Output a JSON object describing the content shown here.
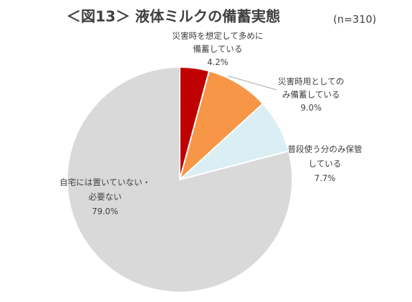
{
  "title": "＜図13＞ 液体ミルクの備蓄実態",
  "sample_size": "(n=310)",
  "chart_data": {
    "type": "pie",
    "title": "＜図13＞ 液体ミルクの備蓄実態",
    "slices": [
      {
        "label_lines": [
          "災害時を想定して多めに",
          "備蓄している"
        ],
        "value_label": "4.2%",
        "value": 4.2,
        "color": "#c00000"
      },
      {
        "label_lines": [
          "災害時用としての",
          "み備蓄している"
        ],
        "value_label": "9.0%",
        "value": 9.0,
        "color": "#f79646"
      },
      {
        "label_lines": [
          "普段使う分のみ保管",
          "している"
        ],
        "value_label": "7.7%",
        "value": 7.7,
        "color": "#dbeef4"
      },
      {
        "label_lines": [
          "自宅には置いていない・",
          "必要ない"
        ],
        "value_label": "79.0%",
        "value": 79.0,
        "color": "#d9d9d9"
      }
    ],
    "start_angle_deg": 0,
    "direction": "clockwise",
    "legend": "none"
  }
}
